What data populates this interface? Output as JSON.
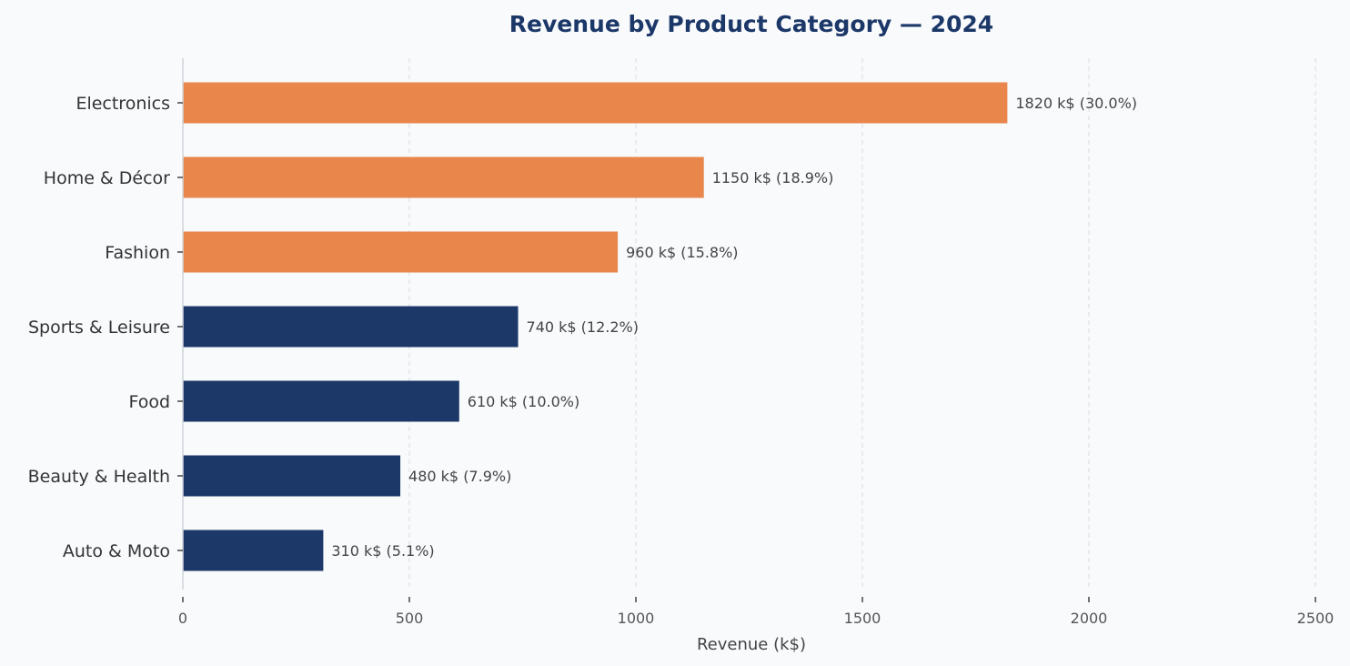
{
  "chart_data": {
    "type": "bar",
    "orientation": "horizontal",
    "title": "Revenue by Product Category — 2024",
    "xlabel": "Revenue (k$)",
    "ylabel": "",
    "xlim": [
      0,
      2500
    ],
    "xticks": [
      0,
      500,
      1000,
      1500,
      2000,
      2500
    ],
    "grid": "x-dashed",
    "unit": "k$",
    "categories": [
      "Electronics",
      "Home & Décor",
      "Fashion",
      "Sports & Leisure",
      "Food",
      "Beauty & Health",
      "Auto & Moto"
    ],
    "values": [
      1820,
      1150,
      960,
      740,
      610,
      480,
      310
    ],
    "percentages": [
      30.0,
      18.9,
      15.8,
      12.2,
      10.0,
      7.9,
      5.1
    ],
    "data_labels": [
      "1820 k$  (30.0%)",
      "1150 k$  (18.9%)",
      "960 k$  (15.8%)",
      "740 k$  (12.2%)",
      "610 k$  (10.0%)",
      "480 k$  (7.9%)",
      "310 k$  (5.1%)"
    ],
    "bar_colors": [
      "#e8864b",
      "#e8864b",
      "#e8864b",
      "#1c3868",
      "#1c3868",
      "#1c3868",
      "#1c3868"
    ],
    "colors": {
      "highlight": "#e8864b",
      "base": "#1c3868",
      "background": "#f8fafc",
      "title": "#1c3868"
    }
  }
}
